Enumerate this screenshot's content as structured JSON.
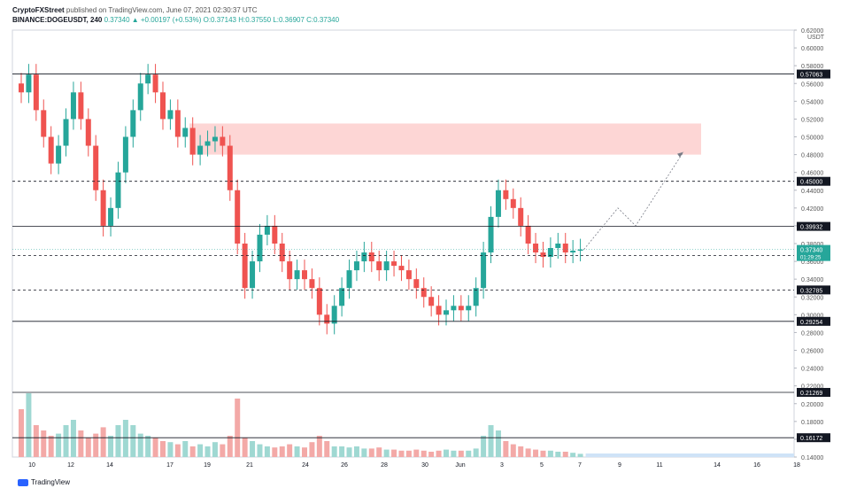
{
  "header": {
    "author": "CryptoFXStreet",
    "published": "published on TradingView.com, June 07, 2021 02:30:37 UTC",
    "symbol": "BINANCE:DOGEUSDT, 240",
    "quote": "0.37340 ▲ +0.00197 (+0.53%)",
    "ohlc": "O:0.37143 H:0.37550 L:0.36907 C:0.37340"
  },
  "footer": {
    "brand": "TradingView"
  },
  "colors": {
    "up": "#26a69a",
    "down": "#ef5350",
    "up_vol": "#9fd8d2",
    "down_vol": "#f3a9a7",
    "zone": "#fdd6d5",
    "price_label": "#26a69a",
    "level_label": "#131722"
  },
  "chart_data": {
    "type": "candlestick",
    "title": "",
    "symbol": "BINANCE:DOGEUSDT",
    "timeframe": "240",
    "y_axis": {
      "unit": "USDT",
      "ylim": [
        0.14,
        0.62
      ],
      "ticks": [
        0.14,
        0.16,
        0.18,
        0.2,
        0.22,
        0.24,
        0.26,
        0.28,
        0.3,
        0.32,
        0.34,
        0.36,
        0.38,
        0.4,
        0.42,
        0.44,
        0.46,
        0.48,
        0.5,
        0.52,
        0.54,
        0.56,
        0.58,
        0.6,
        0.62
      ]
    },
    "x_axis": {
      "ticks": [
        "10",
        "12",
        "14",
        "17",
        "19",
        "21",
        "24",
        "26",
        "28",
        "30",
        "Jun",
        "3",
        "5",
        "7",
        "9",
        "11",
        "14",
        "16",
        "18"
      ]
    },
    "candles_close": [
      0.55,
      0.57,
      0.53,
      0.5,
      0.47,
      0.49,
      0.52,
      0.55,
      0.52,
      0.49,
      0.44,
      0.4,
      0.42,
      0.46,
      0.5,
      0.53,
      0.56,
      0.57,
      0.55,
      0.52,
      0.53,
      0.5,
      0.51,
      0.48,
      0.49,
      0.495,
      0.5,
      0.49,
      0.44,
      0.38,
      0.33,
      0.36,
      0.39,
      0.4,
      0.38,
      0.36,
      0.34,
      0.35,
      0.34,
      0.33,
      0.3,
      0.29,
      0.31,
      0.33,
      0.35,
      0.36,
      0.37,
      0.36,
      0.35,
      0.36,
      0.355,
      0.35,
      0.34,
      0.33,
      0.32,
      0.31,
      0.3,
      0.305,
      0.31,
      0.305,
      0.31,
      0.33,
      0.37,
      0.41,
      0.44,
      0.43,
      0.42,
      0.4,
      0.38,
      0.37,
      0.365,
      0.375,
      0.38,
      0.37,
      0.372,
      0.3734
    ],
    "volume_relative": [
      0.45,
      0.6,
      0.3,
      0.25,
      0.2,
      0.22,
      0.3,
      0.35,
      0.25,
      0.18,
      0.22,
      0.28,
      0.2,
      0.3,
      0.35,
      0.3,
      0.22,
      0.2,
      0.18,
      0.15,
      0.14,
      0.12,
      0.15,
      0.1,
      0.12,
      0.1,
      0.14,
      0.12,
      0.2,
      0.55,
      0.18,
      0.15,
      0.12,
      0.1,
      0.09,
      0.1,
      0.12,
      0.1,
      0.09,
      0.14,
      0.2,
      0.15,
      0.1,
      0.1,
      0.09,
      0.1,
      0.08,
      0.08,
      0.09,
      0.07,
      0.07,
      0.06,
      0.06,
      0.07,
      0.06,
      0.05,
      0.06,
      0.07,
      0.06,
      0.06,
      0.06,
      0.08,
      0.2,
      0.3,
      0.25,
      0.15,
      0.12,
      0.1,
      0.08,
      0.07,
      0.06,
      0.06,
      0.05,
      0.05,
      0.04,
      0.03
    ],
    "horizontal_levels": [
      {
        "value": 0.57063,
        "label": "0.57063",
        "style": "solid"
      },
      {
        "value": 0.45,
        "label": "0.45000",
        "style": "dashed"
      },
      {
        "value": 0.39932,
        "label": "0.39932",
        "style": "solid"
      },
      {
        "value": 0.36671,
        "label": "0.36671",
        "style": "dashed"
      },
      {
        "value": 0.32785,
        "label": "0.32785",
        "style": "dashed"
      },
      {
        "value": 0.29254,
        "label": "0.29254",
        "style": "solid"
      },
      {
        "value": 0.21269,
        "label": "0.21269",
        "style": "solid"
      },
      {
        "value": 0.16172,
        "label": "0.16172",
        "style": "solid"
      }
    ],
    "current_price": {
      "value": 0.3734,
      "label": "0.37340",
      "countdown": "01:29:25"
    },
    "supply_zone": {
      "from": 0.48,
      "to": 0.515
    },
    "projection_path": [
      0.3734,
      0.42,
      0.4,
      0.483
    ]
  }
}
